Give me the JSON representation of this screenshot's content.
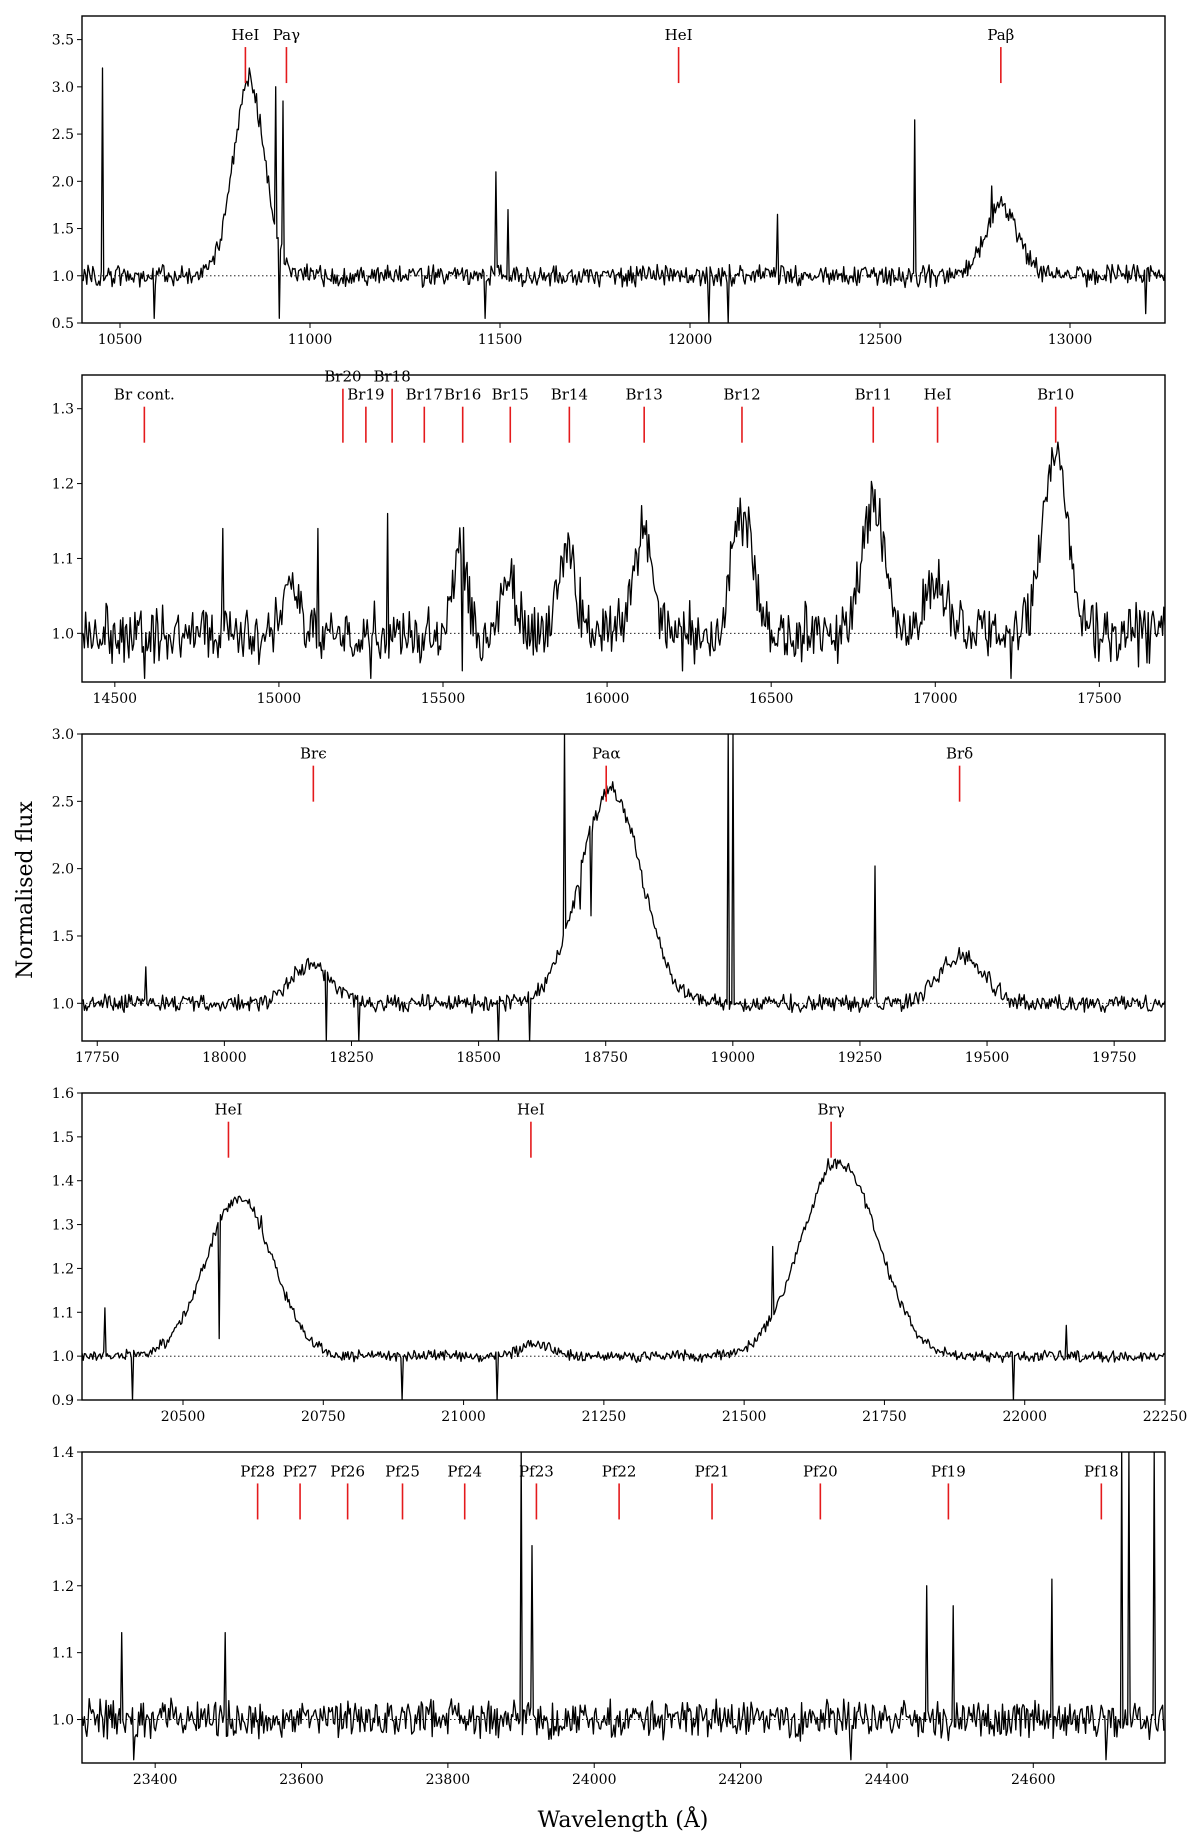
{
  "figure": {
    "xlabel": "Wavelength (Å)",
    "ylabel": "Normalised flux"
  },
  "chart_data": [
    {
      "type": "line",
      "xlim": [
        10400,
        13250
      ],
      "ylim": [
        0.5,
        3.75
      ],
      "xticks": [
        10500,
        11000,
        11500,
        12000,
        12500,
        13000
      ],
      "yticks": [
        "0.5",
        "1.0",
        "1.5",
        "2.0",
        "2.5",
        "3.0",
        "3.5"
      ],
      "continuum": 1.0,
      "profiles": [
        {
          "center": 10840,
          "amp": 2.05,
          "width": 42
        },
        {
          "center": 12820,
          "amp": 0.72,
          "width": 45
        }
      ],
      "spikes": [
        [
          10455,
          3.2
        ],
        [
          10840,
          3.2
        ],
        [
          10910,
          3.0
        ],
        [
          10930,
          2.85
        ],
        [
          11490,
          2.1
        ],
        [
          11520,
          1.7
        ],
        [
          12230,
          1.65
        ],
        [
          12590,
          2.65
        ],
        [
          12795,
          1.95
        ],
        [
          12050,
          0.5
        ],
        [
          12100,
          0.5
        ],
        [
          11460,
          0.55
        ],
        [
          13200,
          0.6
        ],
        [
          10590,
          0.55
        ],
        [
          10920,
          0.55
        ]
      ],
      "noise": 0.09,
      "lines": [
        {
          "label": "HeI",
          "x": 10830,
          "y": 3.4
        },
        {
          "label": "Paγ",
          "x": 10938,
          "y": 3.4
        },
        {
          "label": "HeI",
          "x": 11970,
          "y": 3.4
        },
        {
          "label": "Paβ",
          "x": 12818,
          "y": 3.4
        }
      ]
    },
    {
      "type": "line",
      "xlim": [
        14400,
        17700
      ],
      "ylim": [
        0.935,
        1.345
      ],
      "xticks": [
        14500,
        15000,
        15500,
        16000,
        16500,
        17000,
        17500
      ],
      "yticks": [
        "1.0",
        "1.1",
        "1.2",
        "1.3"
      ],
      "continuum": 1.0,
      "profiles": [
        {
          "center": 15040,
          "amp": 0.05,
          "width": 25
        },
        {
          "center": 15555,
          "amp": 0.11,
          "width": 20
        },
        {
          "center": 15700,
          "amp": 0.08,
          "width": 22
        },
        {
          "center": 15880,
          "amp": 0.11,
          "width": 26
        },
        {
          "center": 16110,
          "amp": 0.14,
          "width": 28
        },
        {
          "center": 16410,
          "amp": 0.16,
          "width": 32
        },
        {
          "center": 16810,
          "amp": 0.18,
          "width": 34
        },
        {
          "center": 17005,
          "amp": 0.07,
          "width": 32
        },
        {
          "center": 17365,
          "amp": 0.24,
          "width": 38
        }
      ],
      "spikes": [
        [
          14830,
          1.14
        ],
        [
          15330,
          1.16
        ],
        [
          15120,
          1.14
        ],
        [
          14590,
          0.94
        ],
        [
          15560,
          0.95
        ],
        [
          16230,
          0.95
        ],
        [
          17230,
          0.94
        ],
        [
          15280,
          0.94
        ]
      ],
      "noise": 0.03,
      "lines": [
        {
          "label": "Br cont.",
          "x": 14590,
          "y": 1.3
        },
        {
          "label": "Br20",
          "x": 15195,
          "y": 1.3
        },
        {
          "label": "Br19",
          "x": 15265,
          "y": 1.3
        },
        {
          "label": "Br18",
          "x": 15345,
          "y": 1.3
        },
        {
          "label": "Br17",
          "x": 15443,
          "y": 1.3
        },
        {
          "label": "Br16",
          "x": 15560,
          "y": 1.3
        },
        {
          "label": "Br15",
          "x": 15705,
          "y": 1.3
        },
        {
          "label": "Br14",
          "x": 15885,
          "y": 1.3
        },
        {
          "label": "Br13",
          "x": 16113,
          "y": 1.3
        },
        {
          "label": "Br12",
          "x": 16411,
          "y": 1.3
        },
        {
          "label": "Br11",
          "x": 16811,
          "y": 1.3
        },
        {
          "label": "HeI",
          "x": 17007,
          "y": 1.3
        },
        {
          "label": "Br10",
          "x": 17367,
          "y": 1.3
        }
      ]
    },
    {
      "type": "line",
      "xlim": [
        17720,
        19850
      ],
      "ylim": [
        0.72,
        3.0
      ],
      "xticks": [
        17750,
        18000,
        18250,
        18500,
        18750,
        19000,
        19250,
        19500,
        19750
      ],
      "yticks": [
        "1.0",
        "1.5",
        "2.0",
        "2.5",
        "3.0"
      ],
      "continuum": 1.0,
      "profiles": [
        {
          "center": 18170,
          "amp": 0.28,
          "width": 40
        },
        {
          "center": 18760,
          "amp": 1.58,
          "width": 60
        },
        {
          "center": 19450,
          "amp": 0.35,
          "width": 45
        }
      ],
      "spikes": [
        [
          17845,
          1.27
        ],
        [
          18670,
          3.0
        ],
        [
          18990,
          3.0
        ],
        [
          19000,
          3.0
        ],
        [
          19280,
          2.02
        ],
        [
          18200,
          0.72
        ],
        [
          18265,
          0.72
        ],
        [
          18540,
          0.72
        ],
        [
          18600,
          0.72
        ],
        [
          18720,
          1.65
        ],
        [
          18700,
          1.7
        ]
      ],
      "noise": 0.05,
      "lines": [
        {
          "label": "Brϵ",
          "x": 18175,
          "y": 2.75
        },
        {
          "label": "Paα",
          "x": 18751,
          "y": 2.75
        },
        {
          "label": "Brδ",
          "x": 19446,
          "y": 2.75
        }
      ]
    },
    {
      "type": "line",
      "xlim": [
        20320,
        22250
      ],
      "ylim": [
        0.9,
        1.6
      ],
      "xticks": [
        20500,
        20750,
        21000,
        21250,
        21500,
        21750,
        22000,
        22250
      ],
      "yticks": [
        "0.9",
        "1.0",
        "1.1",
        "1.2",
        "1.3",
        "1.4",
        "1.5",
        "1.6"
      ],
      "continuum": 1.0,
      "profiles": [
        {
          "center": 20600,
          "amp": 0.36,
          "width": 60
        },
        {
          "center": 21130,
          "amp": 0.03,
          "width": 25
        },
        {
          "center": 21670,
          "amp": 0.44,
          "width": 68
        }
      ],
      "spikes": [
        [
          20360,
          1.11
        ],
        [
          20410,
          0.9
        ],
        [
          20565,
          1.04
        ],
        [
          20640,
          1.32
        ],
        [
          20890,
          0.9
        ],
        [
          21060,
          0.9
        ],
        [
          21550,
          1.25
        ],
        [
          21980,
          0.9
        ],
        [
          21650,
          1.45
        ],
        [
          22075,
          1.07
        ]
      ],
      "noise": 0.01,
      "lines": [
        {
          "label": "HeI",
          "x": 20581,
          "y": 1.53
        },
        {
          "label": "HeI",
          "x": 21120,
          "y": 1.53
        },
        {
          "label": "Brγ",
          "x": 21655,
          "y": 1.53
        }
      ]
    },
    {
      "type": "line",
      "xlim": [
        23300,
        24780
      ],
      "ylim": [
        0.935,
        1.4
      ],
      "xticks": [
        23400,
        23600,
        23800,
        24000,
        24200,
        24400,
        24600
      ],
      "yticks": [
        "1.0",
        "1.1",
        "1.2",
        "1.3",
        "1.4"
      ],
      "continuum": 1.0,
      "profiles": [],
      "spikes": [
        [
          23355,
          1.13
        ],
        [
          23495,
          1.13
        ],
        [
          23900,
          1.4
        ],
        [
          23915,
          1.26
        ],
        [
          24455,
          1.2
        ],
        [
          24490,
          1.17
        ],
        [
          24625,
          1.21
        ],
        [
          24720,
          1.4
        ],
        [
          24730,
          1.4
        ],
        [
          24765,
          1.4
        ],
        [
          23370,
          0.94
        ],
        [
          24350,
          0.94
        ],
        [
          24700,
          0.94
        ]
      ],
      "noise": 0.022,
      "lines": [
        {
          "label": "Pf28",
          "x": 23540,
          "y": 1.35
        },
        {
          "label": "Pf27",
          "x": 23598,
          "y": 1.35
        },
        {
          "label": "Pf26",
          "x": 23663,
          "y": 1.35
        },
        {
          "label": "Pf25",
          "x": 23738,
          "y": 1.35
        },
        {
          "label": "Pf24",
          "x": 23823,
          "y": 1.35
        },
        {
          "label": "Pf23",
          "x": 23921,
          "y": 1.35
        },
        {
          "label": "Pf22",
          "x": 24034,
          "y": 1.35
        },
        {
          "label": "Pf21",
          "x": 24161,
          "y": 1.35
        },
        {
          "label": "Pf20",
          "x": 24309,
          "y": 1.35
        },
        {
          "label": "Pf19",
          "x": 24484,
          "y": 1.35
        },
        {
          "label": "Pf18",
          "x": 24693,
          "y": 1.35
        }
      ]
    }
  ]
}
